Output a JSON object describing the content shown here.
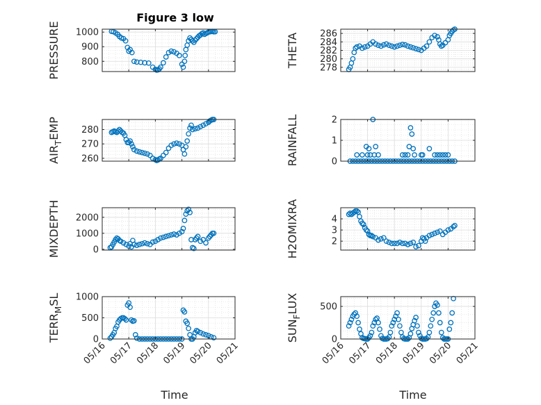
{
  "figure": {
    "title": "Figure 3 low",
    "xlabel": "Time",
    "marker_color": "#0072BD",
    "grid_color": "#d9d9d9",
    "axes_color": "#262626"
  },
  "chart_data": [
    {
      "type": "scatter",
      "ylabel": "PRESSURE",
      "xlim": [
        "05/16",
        "05/21"
      ],
      "ylim": [
        730,
        1020
      ],
      "yticks": [
        800,
        900,
        1000
      ],
      "xticks": [
        "05/16",
        "05/17",
        "05/18",
        "05/19",
        "05/20",
        "05/21"
      ],
      "x_days": [
        0.35,
        0.42,
        0.5,
        0.58,
        0.65,
        0.72,
        0.8,
        0.88,
        0.95,
        1.0,
        1.05,
        1.12,
        1.2,
        1.3,
        1.45,
        1.6,
        1.75,
        1.9,
        2.0,
        2.05,
        2.1,
        2.15,
        2.2,
        2.3,
        2.4,
        2.5,
        2.6,
        2.7,
        2.8,
        2.9,
        3.0,
        3.05,
        3.1,
        3.12,
        3.15,
        3.2,
        3.25,
        3.3,
        3.35,
        3.4,
        3.45,
        3.5,
        3.55,
        3.6,
        3.65,
        3.7,
        3.75,
        3.8,
        3.85,
        3.9,
        3.95,
        4.0,
        4.05,
        4.1,
        4.15,
        4.2,
        4.25
      ],
      "values": [
        1005,
        1003,
        995,
        985,
        970,
        960,
        955,
        940,
        895,
        870,
        880,
        860,
        800,
        795,
        793,
        790,
        788,
        760,
        745,
        740,
        742,
        748,
        760,
        790,
        830,
        860,
        870,
        865,
        855,
        840,
        780,
        760,
        800,
        840,
        880,
        910,
        940,
        960,
        950,
        940,
        930,
        945,
        955,
        965,
        975,
        980,
        990,
        995,
        985,
        990,
        995,
        1000,
        1002,
        1004,
        1005,
        1002,
        1003
      ]
    },
    {
      "type": "scatter",
      "ylabel": "THETA",
      "xlim": [
        "05/16",
        "05/21"
      ],
      "ylim": [
        277,
        287
      ],
      "yticks": [
        278,
        280,
        282,
        284,
        286
      ],
      "xticks": [
        "05/16",
        "05/17",
        "05/18",
        "05/19",
        "05/20",
        "05/21"
      ],
      "x_days": [
        0.3,
        0.35,
        0.4,
        0.45,
        0.5,
        0.55,
        0.6,
        0.7,
        0.8,
        0.9,
        1.0,
        1.1,
        1.2,
        1.3,
        1.4,
        1.5,
        1.6,
        1.7,
        1.8,
        1.9,
        2.0,
        2.1,
        2.2,
        2.3,
        2.4,
        2.5,
        2.6,
        2.7,
        2.8,
        2.9,
        3.0,
        3.1,
        3.2,
        3.3,
        3.4,
        3.5,
        3.6,
        3.65,
        3.7,
        3.75,
        3.8,
        3.9,
        4.0,
        4.05,
        4.1,
        4.15,
        4.2,
        4.25
      ],
      "values": [
        277.5,
        278,
        279,
        280,
        281.5,
        282.5,
        282.8,
        283,
        282.5,
        282.8,
        283,
        283.5,
        284,
        283.5,
        283.2,
        283,
        283.3,
        283.5,
        283.2,
        283,
        282.8,
        283,
        283.2,
        283.4,
        283.3,
        283,
        282.8,
        282.6,
        282.4,
        282.2,
        282,
        282.5,
        283,
        284,
        285,
        285.5,
        285.2,
        284.5,
        283.5,
        283,
        283.2,
        283.8,
        284.5,
        285.5,
        286,
        286.5,
        286.8,
        287
      ]
    },
    {
      "type": "scatter",
      "ylabel": "AIR_TEMP",
      "ylabel_main": "AIR",
      "ylabel_sub": "T",
      "ylabel_tail": "EMP",
      "xlim": [
        "05/16",
        "05/21"
      ],
      "ylim": [
        258,
        287
      ],
      "yticks": [
        260,
        270,
        280
      ],
      "xticks": [
        "05/16",
        "05/17",
        "05/18",
        "05/19",
        "05/20",
        "05/21"
      ],
      "x_days": [
        0.35,
        0.4,
        0.45,
        0.5,
        0.55,
        0.6,
        0.65,
        0.7,
        0.75,
        0.8,
        0.85,
        0.9,
        0.95,
        1.0,
        1.05,
        1.1,
        1.15,
        1.2,
        1.3,
        1.4,
        1.5,
        1.6,
        1.7,
        1.8,
        1.9,
        2.0,
        2.05,
        2.1,
        2.15,
        2.2,
        2.3,
        2.4,
        2.5,
        2.6,
        2.7,
        2.8,
        2.9,
        3.0,
        3.05,
        3.1,
        3.15,
        3.2,
        3.25,
        3.3,
        3.35,
        3.4,
        3.5,
        3.6,
        3.7,
        3.8,
        3.9,
        4.0,
        4.05,
        4.1,
        4.15,
        4.2
      ],
      "values": [
        278,
        278.5,
        279,
        278.5,
        278,
        279,
        280,
        279,
        278,
        277.5,
        276,
        273,
        271,
        271,
        272,
        270,
        268,
        266,
        265,
        264.5,
        264,
        263.5,
        263,
        262,
        260,
        259,
        258.5,
        258.8,
        259.5,
        260,
        262,
        264,
        267,
        269,
        270,
        270.5,
        270,
        269,
        266,
        263,
        268,
        272,
        277,
        281,
        283,
        280,
        280.5,
        281,
        282,
        283,
        284,
        285,
        286,
        286.5,
        287,
        287
      ]
    },
    {
      "type": "scatter",
      "ylabel": "RAINFALL",
      "xlim": [
        "05/16",
        "05/21"
      ],
      "ylim": [
        0,
        2
      ],
      "yticks": [
        0,
        1,
        2
      ],
      "xticks": [
        "05/16",
        "05/17",
        "05/18",
        "05/19",
        "05/20",
        "05/21"
      ],
      "x_days": [
        0.35,
        0.45,
        0.55,
        0.65,
        0.75,
        0.85,
        0.95,
        1.05,
        1.15,
        1.25,
        1.35,
        1.45,
        1.55,
        1.65,
        1.75,
        1.85,
        1.95,
        2.05,
        2.15,
        2.25,
        2.35,
        2.45,
        2.55,
        2.65,
        2.75,
        2.85,
        2.95,
        3.05,
        3.15,
        3.25,
        3.35,
        3.45,
        3.55,
        3.65,
        3.75,
        3.85,
        3.95,
        4.05,
        4.15,
        4.25,
        0.6,
        0.8,
        0.95,
        1.0,
        1.05,
        1.1,
        1.2,
        1.25,
        1.3,
        1.4,
        2.3,
        2.4,
        2.5,
        2.55,
        2.6,
        2.65,
        2.7,
        2.75,
        3.0,
        3.05,
        3.3,
        3.5,
        3.6,
        3.7,
        3.8,
        3.9,
        4.0
      ],
      "values": [
        0,
        0,
        0,
        0,
        0,
        0,
        0,
        0,
        0,
        0,
        0,
        0,
        0,
        0,
        0,
        0,
        0,
        0,
        0,
        0,
        0,
        0,
        0,
        0,
        0,
        0,
        0,
        0,
        0,
        0,
        0,
        0,
        0,
        0,
        0,
        0,
        0,
        0,
        0,
        0,
        0.3,
        0.3,
        0.7,
        0.3,
        0.6,
        0.3,
        2.0,
        0.3,
        0.7,
        0.3,
        0.3,
        0.3,
        0.3,
        0.7,
        1.6,
        1.3,
        0.6,
        0.3,
        0.3,
        0.3,
        0.6,
        0.3,
        0.3,
        0.3,
        0.3,
        0.3,
        0.3
      ]
    },
    {
      "type": "scatter",
      "ylabel": "MIXDEPTH",
      "xlim": [
        "05/16",
        "05/21"
      ],
      "ylim": [
        -50,
        2600
      ],
      "yticks": [
        0,
        1000,
        2000
      ],
      "xticks": [
        "05/16",
        "05/17",
        "05/18",
        "05/19",
        "05/20",
        "05/21"
      ],
      "x_days": [
        0.3,
        0.35,
        0.4,
        0.45,
        0.5,
        0.55,
        0.6,
        0.65,
        0.7,
        0.8,
        0.9,
        1.0,
        1.05,
        1.1,
        1.15,
        1.2,
        1.3,
        1.4,
        1.5,
        1.6,
        1.7,
        1.8,
        1.9,
        2.0,
        2.1,
        2.2,
        2.3,
        2.4,
        2.5,
        2.6,
        2.7,
        2.8,
        2.9,
        3.0,
        3.05,
        3.1,
        3.15,
        3.2,
        3.25,
        3.3,
        3.35,
        3.4,
        3.45,
        3.5,
        3.55,
        3.6,
        3.7,
        3.8,
        3.9,
        4.0,
        4.05,
        4.1,
        4.15,
        4.2
      ],
      "values": [
        100,
        150,
        300,
        450,
        600,
        700,
        650,
        550,
        500,
        400,
        300,
        200,
        350,
        150,
        550,
        300,
        250,
        300,
        350,
        400,
        350,
        300,
        450,
        500,
        600,
        700,
        750,
        800,
        850,
        900,
        950,
        900,
        1000,
        1100,
        1300,
        1800,
        2200,
        2400,
        2500,
        2300,
        600,
        100,
        50,
        600,
        700,
        800,
        500,
        600,
        400,
        700,
        800,
        900,
        1000,
        1000
      ]
    },
    {
      "type": "scatter",
      "ylabel": "H2OMIXRA",
      "xlim": [
        "05/16",
        "05/21"
      ],
      "ylim": [
        1.2,
        5
      ],
      "yticks": [
        2,
        3,
        4
      ],
      "xticks": [
        "05/16",
        "05/17",
        "05/18",
        "05/19",
        "05/20",
        "05/21"
      ],
      "x_days": [
        0.3,
        0.35,
        0.4,
        0.45,
        0.5,
        0.55,
        0.6,
        0.65,
        0.7,
        0.75,
        0.8,
        0.85,
        0.9,
        0.95,
        1.0,
        1.05,
        1.1,
        1.15,
        1.2,
        1.3,
        1.4,
        1.5,
        1.6,
        1.7,
        1.8,
        1.9,
        2.0,
        2.1,
        2.2,
        2.3,
        2.4,
        2.5,
        2.6,
        2.7,
        2.8,
        2.9,
        3.0,
        3.05,
        3.1,
        3.15,
        3.2,
        3.3,
        3.4,
        3.5,
        3.6,
        3.7,
        3.8,
        3.9,
        4.0,
        4.1,
        4.2,
        4.25
      ],
      "values": [
        4.4,
        4.5,
        4.4,
        4.5,
        4.6,
        4.7,
        4.7,
        4.6,
        4.2,
        3.8,
        3.6,
        3.5,
        3.2,
        3.0,
        2.9,
        2.6,
        2.5,
        2.5,
        2.4,
        2.3,
        2.1,
        2.2,
        2.3,
        2.0,
        1.9,
        1.8,
        1.8,
        1.8,
        1.9,
        1.8,
        1.8,
        1.7,
        1.8,
        1.9,
        1.5,
        1.6,
        2.0,
        2.3,
        2.2,
        2.0,
        2.3,
        2.5,
        2.6,
        2.7,
        2.8,
        2.9,
        2.6,
        2.8,
        3.0,
        3.1,
        3.3,
        3.4
      ]
    },
    {
      "type": "scatter",
      "ylabel": "TERR_MSL",
      "ylabel_main": "TERR",
      "ylabel_sub": "M",
      "ylabel_tail": "SL",
      "xlim": [
        "05/16",
        "05/21"
      ],
      "ylim": [
        0,
        1000
      ],
      "yticks": [
        0,
        500,
        1000
      ],
      "xticks": [
        "05/16",
        "05/17",
        "05/18",
        "05/19",
        "05/20",
        "05/21"
      ],
      "x_days": [
        0.3,
        0.35,
        0.4,
        0.45,
        0.5,
        0.55,
        0.6,
        0.65,
        0.7,
        0.75,
        0.8,
        0.85,
        0.9,
        0.95,
        1.0,
        1.05,
        1.1,
        1.15,
        1.2,
        1.25,
        1.3,
        1.4,
        1.5,
        1.6,
        1.7,
        1.8,
        1.9,
        2.0,
        2.1,
        2.2,
        2.3,
        2.4,
        2.5,
        2.6,
        2.7,
        2.8,
        2.9,
        3.0,
        3.05,
        3.1,
        3.15,
        3.2,
        3.25,
        3.3,
        3.35,
        3.4,
        3.45,
        3.5,
        3.55,
        3.6,
        3.7,
        3.8,
        3.9,
        4.0,
        4.1,
        4.2
      ],
      "values": [
        20,
        50,
        100,
        150,
        250,
        300,
        400,
        450,
        480,
        500,
        500,
        480,
        450,
        800,
        850,
        750,
        450,
        420,
        430,
        100,
        20,
        0,
        0,
        0,
        0,
        0,
        0,
        0,
        0,
        0,
        0,
        0,
        0,
        0,
        0,
        0,
        0,
        0,
        680,
        640,
        420,
        370,
        250,
        100,
        0,
        0,
        50,
        150,
        200,
        180,
        150,
        120,
        100,
        80,
        50,
        30
      ]
    },
    {
      "type": "scatter",
      "ylabel": "SUN_FLUX",
      "ylabel_main": "SUN",
      "ylabel_sub": "F",
      "ylabel_tail": "LUX",
      "xlim": [
        "05/16",
        "05/21"
      ],
      "ylim": [
        0,
        650
      ],
      "yticks": [
        0,
        500
      ],
      "xticks": [
        "05/16",
        "05/17",
        "05/18",
        "05/19",
        "05/20",
        "05/21"
      ],
      "x_days": [
        0.3,
        0.35,
        0.4,
        0.45,
        0.5,
        0.55,
        0.6,
        0.65,
        0.7,
        0.75,
        0.8,
        0.85,
        0.9,
        0.95,
        1.0,
        1.05,
        1.1,
        1.15,
        1.2,
        1.25,
        1.3,
        1.35,
        1.4,
        1.45,
        1.5,
        1.55,
        1.6,
        1.65,
        1.7,
        1.75,
        1.8,
        1.85,
        1.9,
        1.95,
        2.0,
        2.05,
        2.1,
        2.15,
        2.2,
        2.25,
        2.3,
        2.35,
        2.4,
        2.45,
        2.5,
        2.55,
        2.6,
        2.65,
        2.7,
        2.75,
        2.8,
        2.85,
        2.9,
        2.95,
        3.0,
        3.05,
        3.1,
        3.15,
        3.2,
        3.25,
        3.3,
        3.35,
        3.4,
        3.45,
        3.5,
        3.55,
        3.6,
        3.65,
        3.7,
        3.75,
        3.8,
        3.85,
        3.9,
        3.95,
        4.0,
        4.05,
        4.1,
        4.15,
        4.2
      ],
      "values": [
        200,
        250,
        300,
        350,
        380,
        400,
        350,
        250,
        150,
        80,
        20,
        10,
        5,
        0,
        0,
        20,
        50,
        100,
        200,
        250,
        300,
        320,
        250,
        150,
        50,
        10,
        0,
        0,
        0,
        5,
        30,
        100,
        200,
        250,
        300,
        350,
        400,
        300,
        200,
        100,
        30,
        5,
        0,
        0,
        0,
        20,
        80,
        160,
        220,
        280,
        330,
        200,
        100,
        50,
        10,
        0,
        0,
        0,
        5,
        30,
        100,
        200,
        300,
        400,
        500,
        550,
        520,
        400,
        250,
        100,
        20,
        0,
        0,
        0,
        0,
        150,
        250,
        400,
        620
      ]
    }
  ]
}
